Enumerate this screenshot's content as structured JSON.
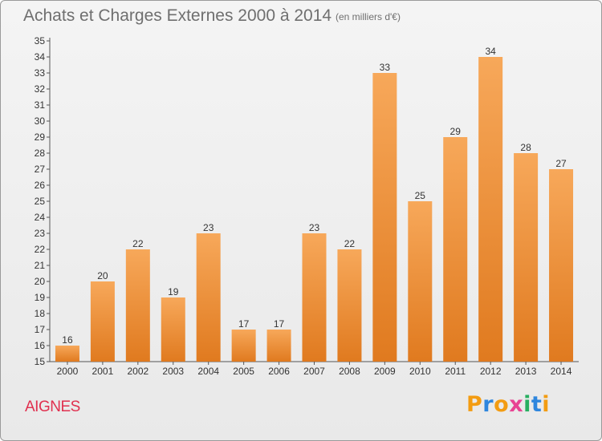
{
  "title": "Achats et Charges Externes 2000 à 2014",
  "subtitle": "(en milliers d'€)",
  "place": "AIGNES",
  "logo": {
    "letters": [
      "P",
      "r",
      "o",
      "x",
      "i",
      "t",
      "i"
    ],
    "colors": [
      "#f39c12",
      "#2e86de",
      "#f39c12",
      "#e84393",
      "#27ae60",
      "#2e86de",
      "#f39c12"
    ]
  },
  "colors": {
    "bar_top": "#f7a85a",
    "bar_bottom": "#e07a1f",
    "text": "#6f6f6f",
    "place": "#e0304f"
  },
  "chart_data": {
    "type": "bar",
    "categories": [
      "2000",
      "2001",
      "2002",
      "2003",
      "2004",
      "2005",
      "2006",
      "2007",
      "2008",
      "2009",
      "2010",
      "2011",
      "2012",
      "2013",
      "2014"
    ],
    "values": [
      16,
      20,
      22,
      19,
      23,
      17,
      17,
      23,
      22,
      33,
      25,
      29,
      34,
      28,
      27
    ],
    "title": "Achats et Charges Externes 2000 à 2014",
    "subtitle": "(en milliers d'€)",
    "xlabel": "",
    "ylabel": "",
    "ylim": [
      15,
      35
    ],
    "yticks": [
      15,
      16,
      17,
      18,
      19,
      20,
      21,
      22,
      23,
      24,
      25,
      26,
      27,
      28,
      29,
      30,
      31,
      32,
      33,
      34,
      35
    ],
    "grid": false,
    "data_labels": true
  }
}
